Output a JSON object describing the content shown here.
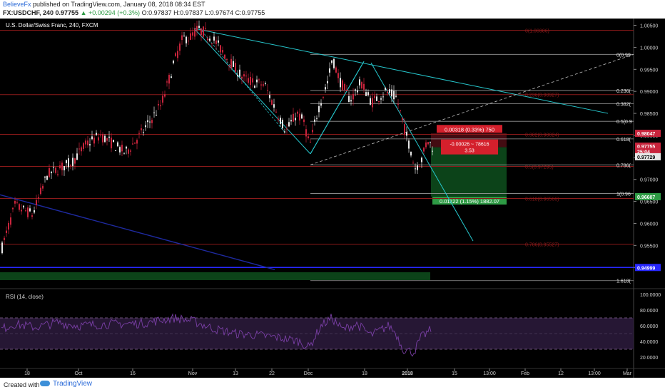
{
  "header": {
    "author": "BelieveFx",
    "published_text": "published on TradingView.com, January 08, 2018 08:34 EST",
    "symbol": "FX:USDCHF, 240",
    "price": "0.97755",
    "change": "▲ +0.00294 (+0.3%)",
    "ohlc": "O:0.97837 H:0.97837 L:0.97674 C:0.97755"
  },
  "footer": {
    "created_with": "Created with",
    "brand": "TradingView"
  },
  "colors": {
    "bull": "#e6e6e6",
    "bear": "#c8243c",
    "trend": "#26c6cc",
    "blue_line": "#1e2aa0",
    "support": "#2828ff",
    "fib_red": "#8c1a1a",
    "fib_white": "#9a9a9a",
    "rsi": "#7a3fa6",
    "rsi_band": "#2a1a3a",
    "green_zone": "#0d4a1c",
    "stop_zone": "#4a0d14"
  },
  "chart_data": [
    {
      "type": "candlestick",
      "title": "U.S. Dollar/Swiss Franc, 240, FXCM",
      "x_ticks": [
        "18",
        "Oct",
        "16",
        "Nov",
        "13",
        "22",
        "Dec",
        "18",
        "2018",
        "15",
        "13:00",
        "Feb",
        "12",
        "13:00",
        "Mar"
      ],
      "y_ticks": [
        "1.00500",
        "1.00000",
        "0.99500",
        "0.99000",
        "0.98500",
        "0.98000",
        "0.97500",
        "0.97000",
        "0.96500",
        "0.96000",
        "0.95500",
        "0.95000"
      ],
      "ylim": [
        0.9455,
        1.0059
      ],
      "price_path": [
        [
          0,
          0.9535
        ],
        [
          20,
          0.964
        ],
        [
          45,
          0.962
        ],
        [
          65,
          0.971
        ],
        [
          100,
          0.974
        ],
        [
          120,
          0.978
        ],
        [
          140,
          0.98
        ],
        [
          175,
          0.976
        ],
        [
          200,
          0.981
        ],
        [
          225,
          0.987
        ],
        [
          245,
          0.9975
        ],
        [
          255,
          1.002
        ],
        [
          265,
          1.0022
        ],
        [
          275,
          1.004
        ],
        [
          285,
          1.0035
        ],
        [
          300,
          1.0015
        ],
        [
          320,
          0.997
        ],
        [
          340,
          0.993
        ],
        [
          355,
          0.992
        ],
        [
          370,
          0.9915
        ],
        [
          385,
          0.986
        ],
        [
          400,
          0.981
        ],
        [
          415,
          0.985
        ],
        [
          425,
          0.983
        ],
        [
          433,
          0.9775
        ],
        [
          445,
          0.986
        ],
        [
          458,
          0.992
        ],
        [
          465,
          0.9975
        ],
        [
          475,
          0.9925
        ],
        [
          490,
          0.988
        ],
        [
          505,
          0.992
        ],
        [
          520,
          0.9875
        ],
        [
          540,
          0.99
        ],
        [
          555,
          0.9885
        ],
        [
          565,
          0.982
        ],
        [
          575,
          0.9765
        ],
        [
          580,
          0.9725
        ],
        [
          590,
          0.9745
        ],
        [
          598,
          0.979
        ],
        [
          605,
          0.9775
        ]
      ],
      "fib_levels_red": [
        {
          "label": "0(1.00386)",
          "value": 1.00386
        },
        {
          "label": "0.236(0.98927)",
          "value": 0.98927
        },
        {
          "label": "0.382(0.98024)",
          "value": 0.98024
        },
        {
          "label": "0.5(0.97295)",
          "value": 0.97295
        },
        {
          "label": "0.618(0.96566)",
          "value": 0.96566
        },
        {
          "label": "0.786(0.95527)",
          "value": 0.95527
        }
      ],
      "fib_levels_white": [
        {
          "label": "0(0.99",
          "value": 0.9984
        },
        {
          "label": "0.236(",
          "value": 0.9902
        },
        {
          "label": "0.382(",
          "value": 0.9872
        },
        {
          "label": "0.5(0.9",
          "value": 0.9832
        },
        {
          "label": "0.618(",
          "value": 0.9792
        },
        {
          "label": "0.786(",
          "value": 0.9733
        },
        {
          "label": "1(0.96",
          "value": 0.9668
        },
        {
          "label": "1.618(",
          "value": 0.947
        }
      ],
      "price_tags": [
        {
          "label": "0.98047",
          "value": 0.98047,
          "color": "#c8243c"
        },
        {
          "label": "0.97755",
          "value": 0.97755,
          "color": "#c8243c"
        },
        {
          "label": "25:04",
          "value": 0.97635,
          "color": "#c8243c"
        },
        {
          "label": "0.97729",
          "value": 0.97515,
          "color": "#e6e6e6"
        },
        {
          "label": "0.96607",
          "value": 0.96607,
          "color": "#2e9b45"
        },
        {
          "label": "0.94999",
          "value": 0.94999,
          "color": "#2828ff"
        }
      ],
      "position": {
        "stop_label": "0.00318 (0.33%) 750",
        "pnl_label_1": "-0.00026 ~ 78616",
        "pnl_label_2": "3.53",
        "target_label": "0.01122 (1.15%) 1882.07",
        "entry": 0.9773,
        "stop": 0.9805,
        "target": 0.9661
      },
      "support_line": 0.94999
    },
    {
      "type": "line",
      "title": "RSI (14, close)",
      "y_ticks": [
        "100.0000",
        "80.0000",
        "60.0000",
        "40.0000",
        "20.0000"
      ],
      "ylim": [
        0,
        100
      ],
      "band": [
        30,
        70
      ],
      "values_path": [
        [
          0,
          55
        ],
        [
          20,
          62
        ],
        [
          50,
          58
        ],
        [
          80,
          64
        ],
        [
          110,
          60
        ],
        [
          150,
          62
        ],
        [
          200,
          63
        ],
        [
          245,
          70
        ],
        [
          270,
          66
        ],
        [
          300,
          56
        ],
        [
          330,
          50
        ],
        [
          360,
          48
        ],
        [
          390,
          45
        ],
        [
          420,
          40
        ],
        [
          433,
          32
        ],
        [
          450,
          60
        ],
        [
          465,
          70
        ],
        [
          480,
          55
        ],
        [
          500,
          62
        ],
        [
          520,
          48
        ],
        [
          545,
          60
        ],
        [
          555,
          50
        ],
        [
          565,
          30
        ],
        [
          580,
          26
        ],
        [
          590,
          45
        ],
        [
          600,
          52
        ],
        [
          605,
          56
        ]
      ]
    }
  ]
}
